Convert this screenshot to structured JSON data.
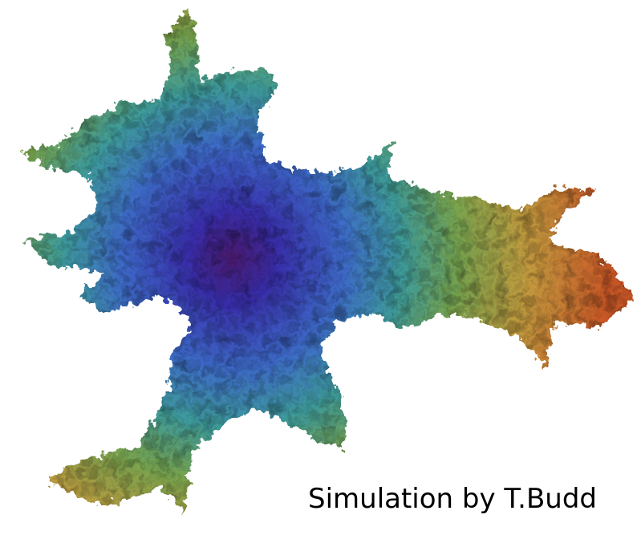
{
  "caption": "Simulation by T.Budd"
}
